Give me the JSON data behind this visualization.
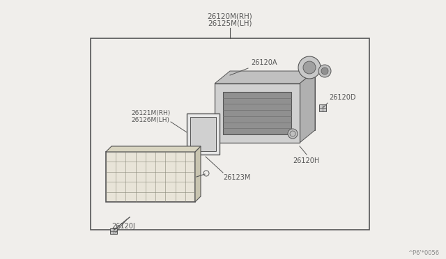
{
  "background_color": "#f0eeeb",
  "border_color": "#555555",
  "line_color": "#555555",
  "watermark": "^P6'*0056",
  "labels": {
    "top_label1": "26120M(RH)",
    "top_label2": "26125M(LH)",
    "label_A": "26120A",
    "label_D": "26120D",
    "label_H": "26120H",
    "label_J": "26120J",
    "label_123M": "26123M",
    "label_121": "26121M(RH)",
    "label_126": "26126M(LH)"
  },
  "figsize": [
    6.4,
    3.72
  ],
  "dpi": 100
}
